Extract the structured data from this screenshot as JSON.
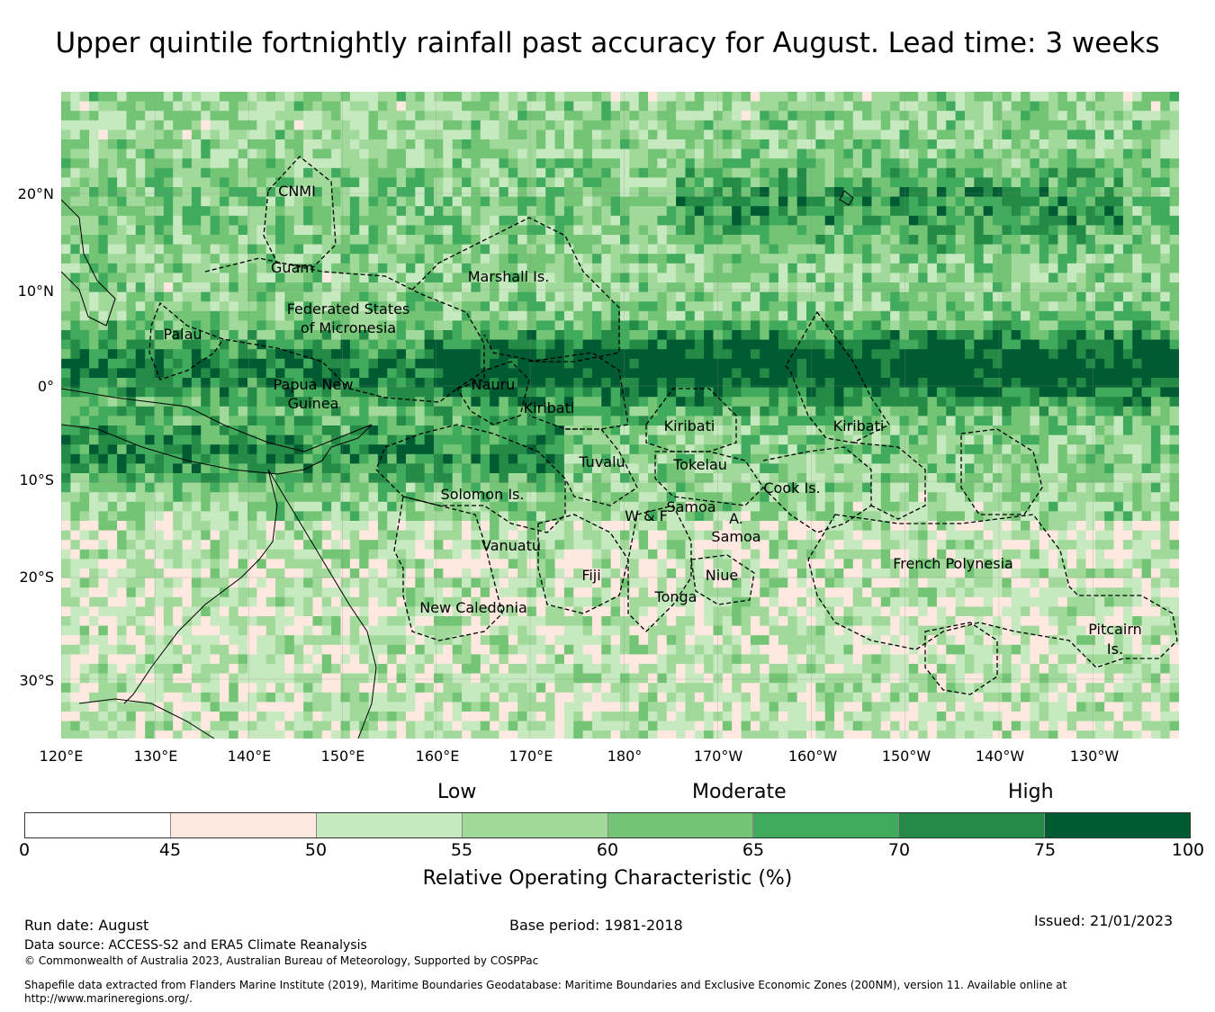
{
  "title": "Upper quintile fortnightly rainfall past accuracy for August. Lead time: 3 weeks",
  "map": {
    "lat_labels": [
      "20°N",
      "10°N",
      "0°",
      "10°S",
      "20°S",
      "30°S"
    ],
    "lon_labels": [
      "120°E",
      "130°E",
      "140°E",
      "150°E",
      "160°E",
      "170°E",
      "180°",
      "170°W",
      "160°W",
      "150°W",
      "140°W",
      "130°W"
    ],
    "regions": [
      "CNMI",
      "Guam",
      "Marshall Is.",
      "Federated States",
      "of Micronesia",
      "Palau",
      "Papua New",
      "Guinea",
      "Nauru",
      "Kiribati",
      "Kiribati",
      "Kiribati",
      "Tuvalu",
      "Tokelau",
      "Solomon Is.",
      "Samoa",
      "W & F",
      "A.",
      "Samoa",
      "Cook Is.",
      "Vanuatu",
      "Fiji",
      "Niue",
      "Tonga",
      "French Polynesia",
      "New Caledonia",
      "Pitcairn",
      "Is."
    ]
  },
  "legend": {
    "categories": [
      "Low",
      "Moderate",
      "High"
    ],
    "ticks": [
      "0",
      "45",
      "50",
      "55",
      "60",
      "65",
      "70",
      "75",
      "100"
    ],
    "colors": [
      "#ffffff",
      "#fee8e0",
      "#c7e9c0",
      "#a1d99b",
      "#74c476",
      "#41ab5d",
      "#238b45",
      "#005a32"
    ],
    "label": "Relative Operating Characteristic (%)"
  },
  "footer": {
    "run_date": "Run date: August",
    "base_period": "Base period: 1981-2018",
    "issued": "Issued: 21/01/2023",
    "data_source": "Data source: ACCESS-S2 and ERA5 Climate Reanalysis",
    "copyright": "© Commonwealth of Australia 2023, Australian Bureau of Meteorology, Supported by COSPPac",
    "shapefile_1": "Shapefile data extracted from Flanders Marine Institute (2019), Maritime Boundaries Geodatabase: Maritime Boundaries and Exclusive Economic Zones (200NM), version 11. Available online at",
    "shapefile_2": "http://www.marineregions.org/."
  }
}
